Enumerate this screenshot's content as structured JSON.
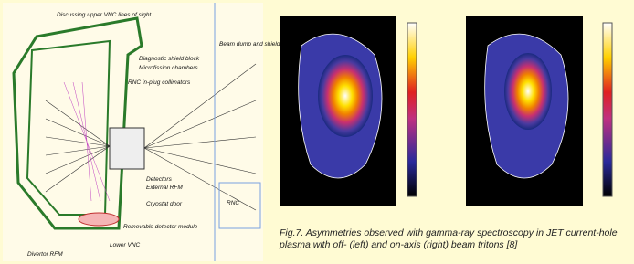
{
  "figure": {
    "diagram": {
      "labels": [
        "Discussing upper VNC lines of sight",
        "Diagnostic shield block",
        "Microfission chambers",
        "RNC in-plug collimators",
        "Detectors",
        "External RFM",
        "Cryostat door",
        "Beam dump and shielding",
        "RNC",
        "Removable detector module",
        "Lower VNC",
        "Divertor RFM"
      ]
    },
    "caption": "Fig.7. Asymmetries observed with gamma-ray spectroscopy in JET current-hole plasma with off- (left) and on-axis (right) beam tritons [8]"
  }
}
